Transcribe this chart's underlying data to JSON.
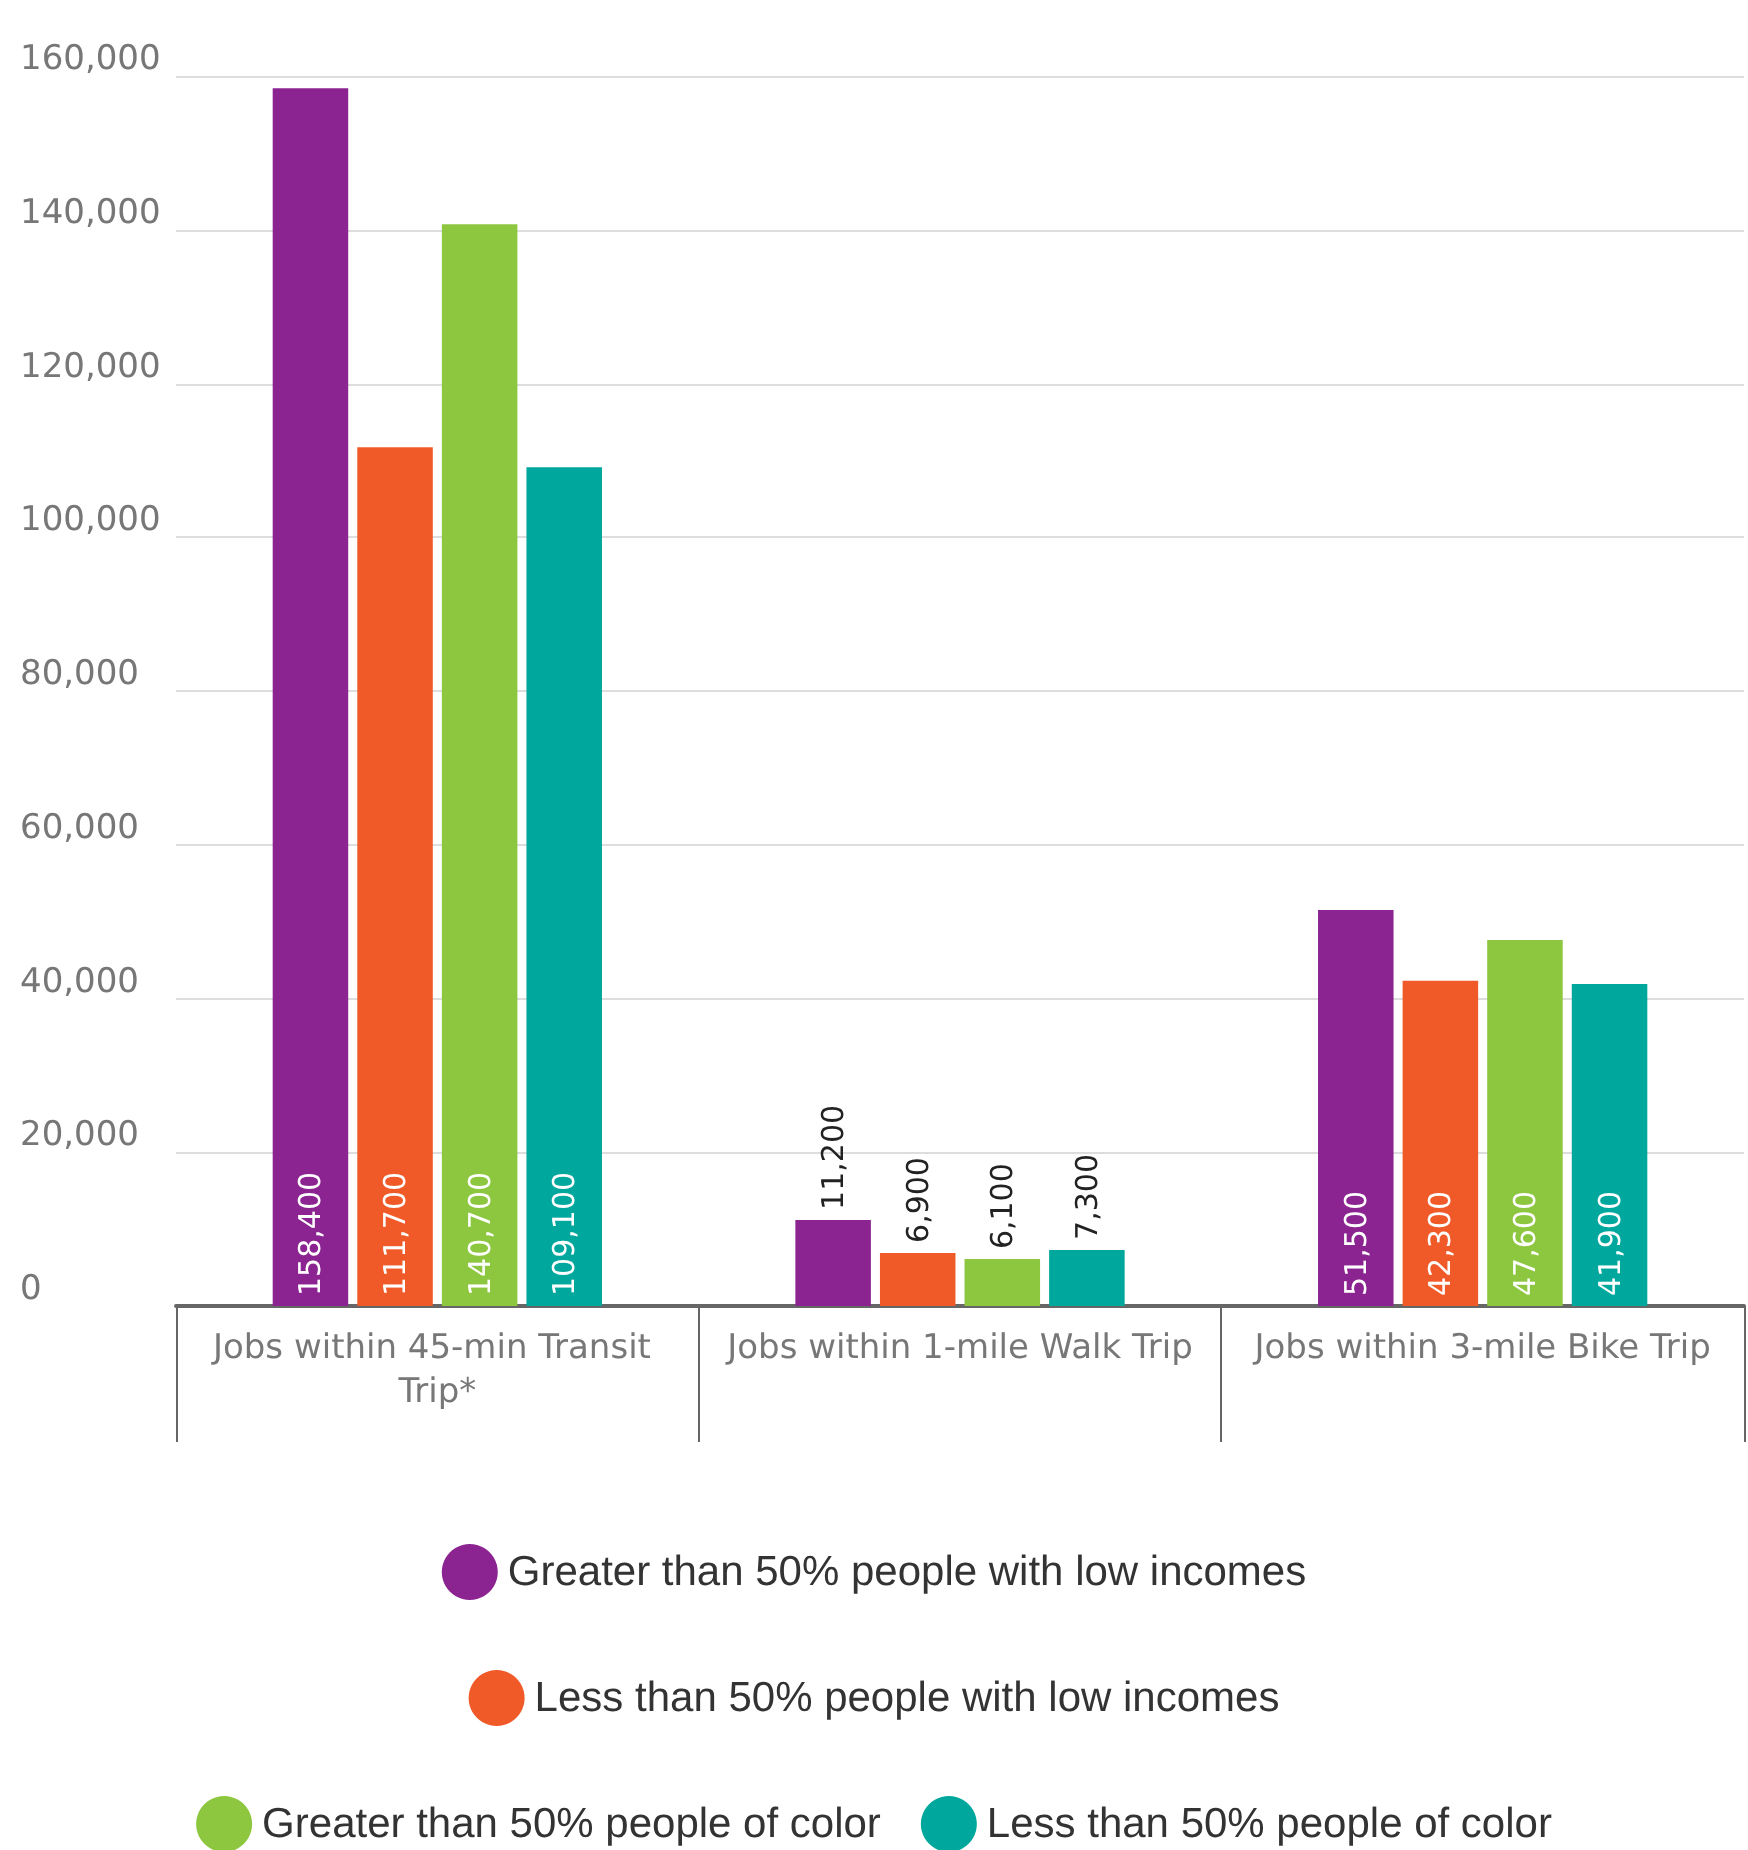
{
  "chart_data": {
    "type": "bar",
    "categories": [
      "Jobs within 45-min Transit Trip*",
      "Jobs within 1-mile Walk Trip",
      "Jobs within 3-mile Bike Trip"
    ],
    "series": [
      {
        "name": "Greater than 50% people with low incomes",
        "color": "#8b2491",
        "values": [
          158400,
          11200,
          51500
        ],
        "value_labels": [
          "158,400",
          "11,200",
          "51,500"
        ]
      },
      {
        "name": "Less than 50% people with low incomes",
        "color": "#f05a28",
        "values": [
          111700,
          6900,
          42300
        ],
        "value_labels": [
          "111,700",
          "6,900",
          "42,300"
        ]
      },
      {
        "name": "Greater than 50% people of color",
        "color": "#8dc63f",
        "values": [
          140700,
          6100,
          47600
        ],
        "value_labels": [
          "140,700",
          "6,100",
          "47,600"
        ]
      },
      {
        "name": "Less than 50% people of color",
        "color": "#00a79d",
        "values": [
          109100,
          7300,
          41900
        ],
        "value_labels": [
          "109,100",
          "7,300",
          "41,900"
        ]
      }
    ],
    "ylim": [
      0,
      160000
    ],
    "yticks": [
      0,
      {
        "value": 20000,
        "label": "20,000"
      },
      {
        "value": 40000,
        "label": "40,000"
      },
      {
        "value": 60000,
        "label": "60,000"
      },
      {
        "value": 80000,
        "label": "80,000"
      },
      {
        "value": 100000,
        "label": "100,000"
      },
      {
        "value": 120000,
        "label": "120,000"
      },
      {
        "value": 140000,
        "label": "140,000"
      },
      {
        "value": 160000,
        "label": "160,000"
      }
    ],
    "grid": "y",
    "legend": "bottom"
  }
}
